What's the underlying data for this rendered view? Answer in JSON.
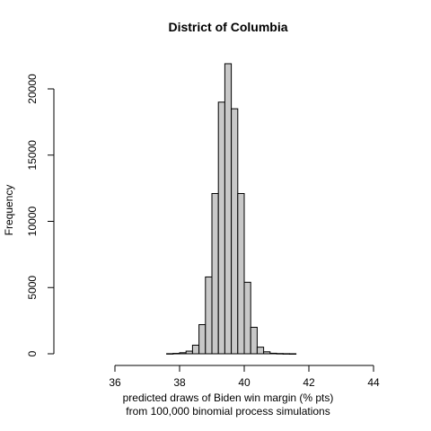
{
  "chart_data": {
    "type": "bar",
    "title": "District of Columbia",
    "xlabel_line1": "predicted draws of Biden win margin (% pts)",
    "xlabel_line2": "from 100,000 binomial process simulations",
    "ylabel": "Frequency",
    "xlim": [
      35,
      45
    ],
    "ylim": [
      0,
      22000
    ],
    "x_ticks": [
      36,
      38,
      40,
      42,
      44
    ],
    "y_ticks": [
      0,
      5000,
      10000,
      15000,
      20000
    ],
    "bin_width": 0.2,
    "bins": [
      {
        "start": 37.6,
        "value": 10
      },
      {
        "start": 37.8,
        "value": 30
      },
      {
        "start": 38.0,
        "value": 80
      },
      {
        "start": 38.2,
        "value": 200
      },
      {
        "start": 38.4,
        "value": 650
      },
      {
        "start": 38.6,
        "value": 2200
      },
      {
        "start": 38.8,
        "value": 5800
      },
      {
        "start": 39.0,
        "value": 12100
      },
      {
        "start": 39.2,
        "value": 19000
      },
      {
        "start": 39.4,
        "value": 21900
      },
      {
        "start": 39.6,
        "value": 18500
      },
      {
        "start": 39.8,
        "value": 12100
      },
      {
        "start": 40.0,
        "value": 5400
      },
      {
        "start": 40.2,
        "value": 2000
      },
      {
        "start": 40.4,
        "value": 500
      },
      {
        "start": 40.6,
        "value": 150
      },
      {
        "start": 40.8,
        "value": 40
      },
      {
        "start": 41.0,
        "value": 20
      },
      {
        "start": 41.2,
        "value": 10
      },
      {
        "start": 41.4,
        "value": 5
      }
    ]
  }
}
